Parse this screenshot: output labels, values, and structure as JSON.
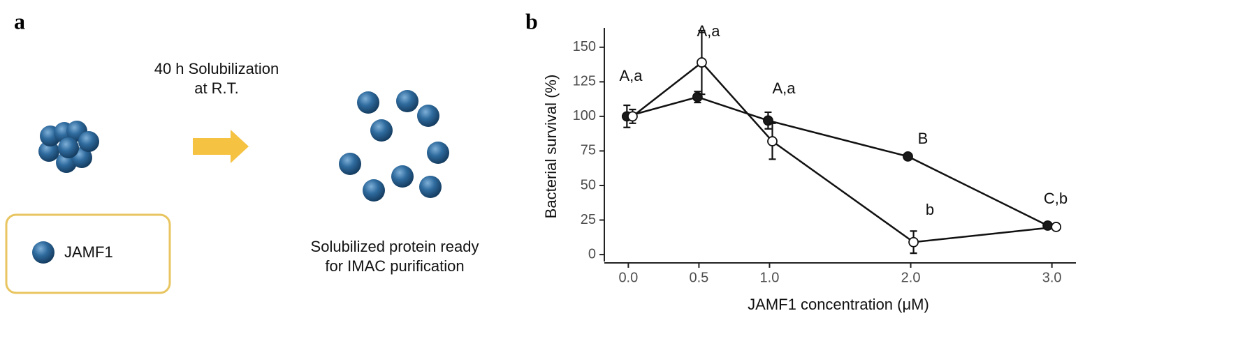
{
  "panel_a": {
    "label": "a",
    "step_text": [
      "40 h Solubilization",
      "at R.T."
    ],
    "result_text": [
      "Solubilized protein ready",
      "for IMAC purification"
    ],
    "legend_label": "JAMF1"
  },
  "chart_data": {
    "type": "line",
    "panel_label": "b",
    "x_label": "JAMF1 concentration (μM)",
    "y_label": "Bacterial survival (%)",
    "xlim": [
      -0.17,
      3.17
    ],
    "ylim": [
      -5,
      162
    ],
    "xticks": [
      {
        "value": 0,
        "label": "0.0"
      },
      {
        "value": 0.5,
        "label": "0.5"
      },
      {
        "value": 1,
        "label": "1.0"
      },
      {
        "value": 2,
        "label": "2.0"
      },
      {
        "value": 3,
        "label": "3.0"
      }
    ],
    "yticks": [
      0,
      25,
      50,
      75,
      100,
      125,
      150
    ],
    "series": [
      {
        "color": "#1a1a1a",
        "x": [
          -0.01,
          0.49,
          0.99,
          1.98,
          2.97
        ],
        "values": [
          100,
          114,
          97,
          71,
          21
        ],
        "errors": [
          8,
          4,
          6,
          2,
          2
        ]
      },
      {
        "color": "#ffffff",
        "x": [
          0.03,
          0.52,
          1.02,
          2.02,
          3.03
        ],
        "values": [
          100,
          139,
          82,
          9,
          20
        ],
        "errors": [
          5,
          23,
          13,
          8,
          1
        ]
      }
    ],
    "annotations": [
      "A,a",
      "A,a",
      "A,a",
      "B",
      "b",
      "C,b"
    ]
  }
}
